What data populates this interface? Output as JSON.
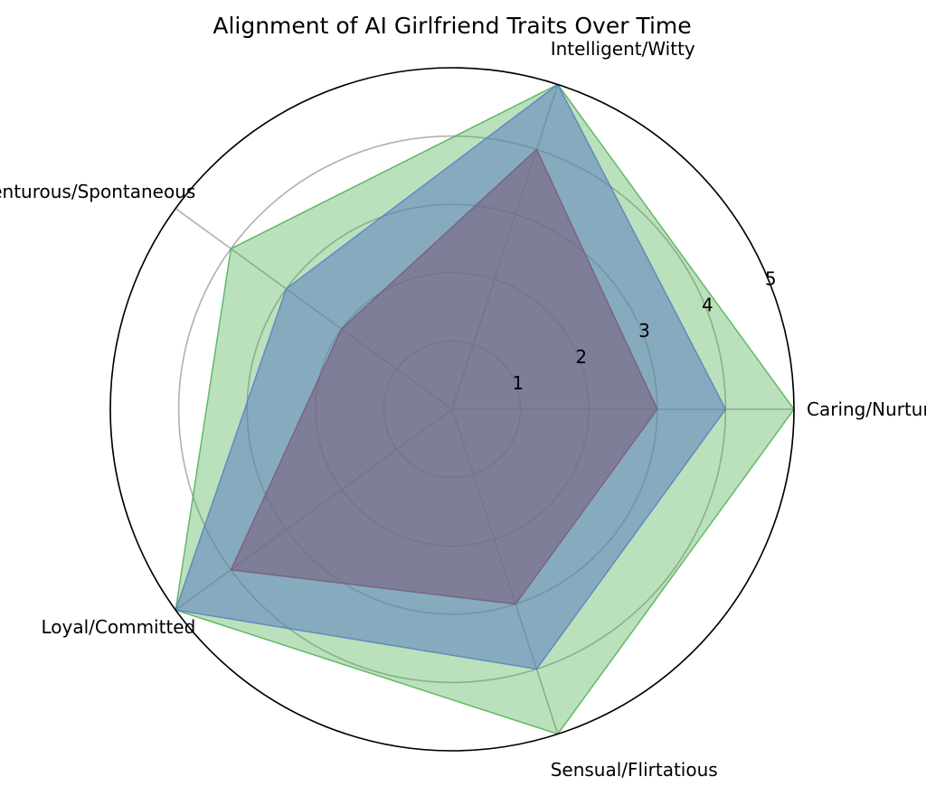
{
  "chart_data": {
    "type": "radar",
    "title": "Alignment of AI Girlfriend Traits Over Time",
    "categories": [
      "Caring/Nurturing",
      "Intelligent/Witty",
      "Adventurous/Spontaneous",
      "Loyal/Committed",
      "Sensual/Flirtatious"
    ],
    "radial_ticks": [
      "1",
      "2",
      "3",
      "4",
      "5"
    ],
    "rlim": [
      0,
      5
    ],
    "grid": true,
    "legend": "none",
    "series": [
      {
        "color": "#4caf50",
        "opacity": 0.38,
        "values": [
          5,
          5,
          4,
          5,
          5
        ]
      },
      {
        "color": "#5b7fbf",
        "opacity": 0.55,
        "values": [
          4,
          5,
          3,
          5,
          4
        ]
      },
      {
        "color": "#7a5a7a",
        "opacity": 0.55,
        "values": [
          3,
          4,
          2,
          4,
          3
        ]
      }
    ]
  }
}
